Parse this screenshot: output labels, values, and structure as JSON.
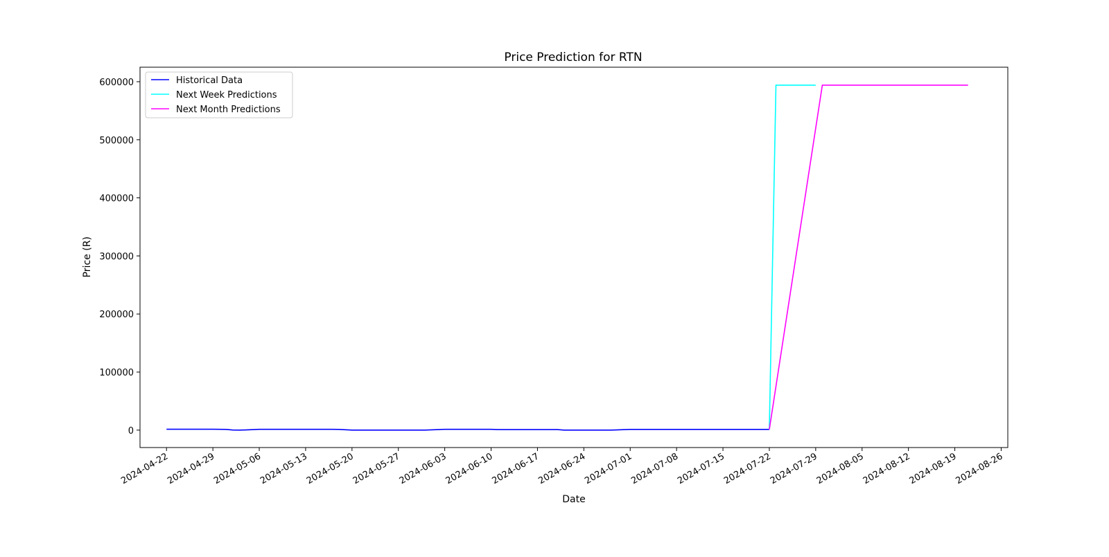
{
  "chart_data": {
    "type": "line",
    "title": "Price Prediction for RTN",
    "xlabel": "Date",
    "ylabel": "Price (R)",
    "xlim": [
      "2024-04-18",
      "2024-08-27"
    ],
    "ylim": [
      -30000,
      625000
    ],
    "x_ticks": [
      "2024-04-22",
      "2024-04-29",
      "2024-05-06",
      "2024-05-13",
      "2024-05-20",
      "2024-05-27",
      "2024-06-03",
      "2024-06-10",
      "2024-06-17",
      "2024-06-24",
      "2024-07-01",
      "2024-07-08",
      "2024-07-15",
      "2024-07-22",
      "2024-07-29",
      "2024-08-05",
      "2024-08-12",
      "2024-08-19",
      "2024-08-26"
    ],
    "y_ticks": [
      0,
      100000,
      200000,
      300000,
      400000,
      500000,
      600000
    ],
    "grid": false,
    "legend_position": "top-left",
    "series": [
      {
        "name": "Historical Data",
        "color": "#0000ff",
        "points": [
          [
            "2024-04-22",
            1500
          ],
          [
            "2024-04-29",
            1500
          ],
          [
            "2024-05-01",
            1300
          ],
          [
            "2024-05-02",
            200
          ],
          [
            "2024-05-03",
            0
          ],
          [
            "2024-05-04",
            300
          ],
          [
            "2024-05-06",
            1400
          ],
          [
            "2024-05-17",
            1400
          ],
          [
            "2024-05-18",
            1200
          ],
          [
            "2024-05-20",
            100
          ],
          [
            "2024-05-31",
            100
          ],
          [
            "2024-06-03",
            1400
          ],
          [
            "2024-06-10",
            1400
          ],
          [
            "2024-06-11",
            1000
          ],
          [
            "2024-06-20",
            1000
          ],
          [
            "2024-06-21",
            0
          ],
          [
            "2024-06-28",
            0
          ],
          [
            "2024-07-01",
            1200
          ],
          [
            "2024-07-22",
            1200
          ]
        ]
      },
      {
        "name": "Next Week Predictions",
        "color": "#00ffff",
        "points": [
          [
            "2024-07-22",
            1200
          ],
          [
            "2024-07-23",
            594000
          ],
          [
            "2024-07-29",
            594000
          ]
        ]
      },
      {
        "name": "Next Month Predictions",
        "color": "#ff00ff",
        "points": [
          [
            "2024-07-22",
            1200
          ],
          [
            "2024-07-30",
            594000
          ],
          [
            "2024-08-21",
            594000
          ]
        ]
      }
    ]
  }
}
